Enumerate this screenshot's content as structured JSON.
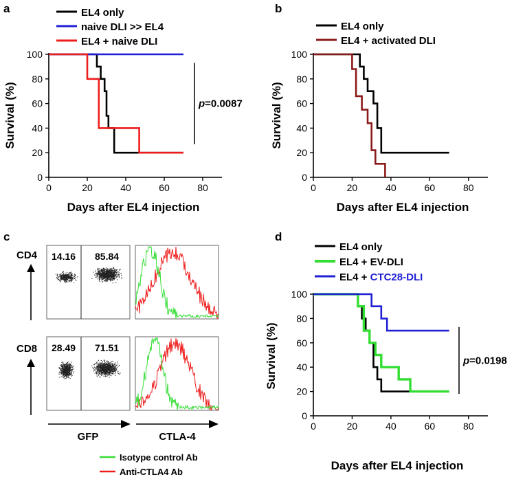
{
  "colors": {
    "black": "#000000",
    "blue": "#1f1fd6",
    "red": "#ee1c1c",
    "darkred": "#8b1a1a",
    "green": "#33dd33"
  },
  "chart_data": [
    {
      "panel": "a",
      "type": "line",
      "subtype": "kaplan-meier-step",
      "xlabel": "Days after EL4 injection",
      "ylabel": "Survival (%)",
      "xlim": [
        0,
        90
      ],
      "ylim": [
        0,
        100
      ],
      "xticks": [
        "0",
        "20",
        "40",
        "60",
        "80"
      ],
      "yticks": [
        "0",
        "20",
        "40",
        "60",
        "80",
        "100"
      ],
      "legend_position": "top-left",
      "series": [
        {
          "name": "EL4 only",
          "color": "#000000",
          "x": [
            0,
            25,
            25,
            27,
            27,
            29,
            29,
            30,
            30,
            31,
            31,
            34,
            34,
            70
          ],
          "y": [
            100,
            100,
            90,
            90,
            80,
            80,
            70,
            70,
            50,
            50,
            40,
            40,
            20,
            20
          ]
        },
        {
          "name": "naive DLI >> EL4",
          "color": "#1f1fd6",
          "x": [
            0,
            70
          ],
          "y": [
            100,
            100
          ]
        },
        {
          "name": "EL4 + naive DLI",
          "color": "#ee1c1c",
          "x": [
            0,
            20,
            20,
            26,
            26,
            32,
            32,
            47,
            47,
            70
          ],
          "y": [
            100,
            100,
            80,
            80,
            40,
            40,
            40,
            40,
            20,
            20
          ]
        }
      ],
      "annotation": {
        "label_italic": "p",
        "label_rest": "=0.0087",
        "bracket_from_y": 93,
        "bracket_to_y": 27
      }
    },
    {
      "panel": "b",
      "type": "line",
      "subtype": "kaplan-meier-step",
      "xlabel": "Days after EL4 injection",
      "ylabel": "Survival (%)",
      "xlim": [
        0,
        90
      ],
      "ylim": [
        0,
        100
      ],
      "xticks": [
        "0",
        "20",
        "40",
        "60",
        "80"
      ],
      "yticks": [
        "0",
        "20",
        "40",
        "60",
        "80",
        "100"
      ],
      "legend_position": "top-left",
      "series": [
        {
          "name": "EL4 only",
          "color": "#000000",
          "x": [
            0,
            24,
            24,
            26,
            26,
            28,
            28,
            31,
            31,
            33,
            33,
            35,
            35,
            70
          ],
          "y": [
            100,
            100,
            90,
            90,
            80,
            80,
            70,
            70,
            60,
            60,
            40,
            40,
            20,
            20
          ]
        },
        {
          "name": "EL4 + activated DLI",
          "color": "#8b1a1a",
          "x": [
            0,
            20,
            20,
            22,
            22,
            25,
            25,
            28,
            28,
            30,
            30,
            32,
            32,
            34,
            34,
            37,
            37
          ],
          "y": [
            100,
            100,
            88,
            88,
            66,
            66,
            55,
            55,
            44,
            44,
            22,
            22,
            11,
            11,
            11,
            11,
            0
          ]
        }
      ]
    },
    {
      "panel": "d",
      "type": "line",
      "subtype": "kaplan-meier-step",
      "xlabel": "Days after EL4 injection",
      "ylabel": "Survival (%)",
      "xlim": [
        0,
        90
      ],
      "ylim": [
        0,
        100
      ],
      "xticks": [
        "0",
        "20",
        "40",
        "60",
        "80"
      ],
      "yticks": [
        "0",
        "20",
        "40",
        "60",
        "80",
        "100"
      ],
      "legend_position": "top-left",
      "series": [
        {
          "name_parts": [
            {
              "text": "EL4 only",
              "color": "#000000"
            }
          ],
          "color": "#000000",
          "x": [
            0,
            23,
            23,
            25,
            25,
            27,
            27,
            29,
            29,
            31,
            31,
            33,
            33,
            35,
            35,
            70
          ],
          "y": [
            100,
            100,
            90,
            90,
            80,
            80,
            70,
            70,
            60,
            60,
            40,
            40,
            30,
            30,
            20,
            20
          ]
        },
        {
          "name_parts": [
            {
              "text": "EL4 + EV-DLI",
              "color": "#000000"
            }
          ],
          "color": "#33dd33",
          "x": [
            0,
            23,
            23,
            26,
            26,
            29,
            29,
            32,
            32,
            35,
            35,
            38,
            38,
            44,
            44,
            50,
            50,
            70
          ],
          "y": [
            100,
            100,
            90,
            90,
            70,
            70,
            60,
            60,
            50,
            50,
            40,
            40,
            40,
            40,
            30,
            30,
            20,
            20
          ]
        },
        {
          "name_parts": [
            {
              "text": "EL4 + ",
              "color": "#000000"
            },
            {
              "text": "CTC28-DLI",
              "color": "#1f1fd6"
            }
          ],
          "color": "#1f1fd6",
          "x": [
            0,
            30,
            30,
            35,
            35,
            38,
            38,
            42,
            42,
            70
          ],
          "y": [
            100,
            100,
            90,
            90,
            80,
            80,
            70,
            70,
            70,
            70
          ]
        }
      ],
      "annotation": {
        "label_italic": "p",
        "label_rest": "=0.0198",
        "bracket_from_y": 73,
        "bracket_to_y": 18
      }
    },
    {
      "panel": "c",
      "type": "scatter",
      "subtype": "flow-cytometry",
      "rows": [
        {
          "label": "CD4",
          "gate_left": "14.16",
          "gate_right": "85.84"
        },
        {
          "label": "CD8",
          "gate_left": "28.49",
          "gate_right": "71.51"
        }
      ],
      "xlabel_scatter": "GFP",
      "xlabel_histogram": "CTLA-4",
      "histogram_legend": [
        {
          "name": "Isotype control Ab",
          "color": "#33dd33"
        },
        {
          "name": "Anti-CTLA4 Ab",
          "color": "#ee1c1c"
        }
      ]
    }
  ],
  "panel_letters": {
    "a": "a",
    "b": "b",
    "c": "c",
    "d": "d"
  }
}
